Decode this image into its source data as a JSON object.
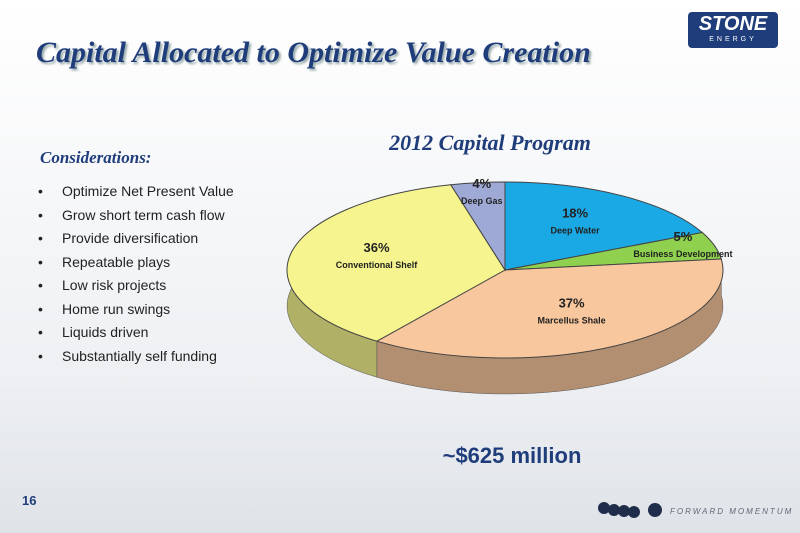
{
  "slide": {
    "title": "Capital Allocated to Optimize Value Creation",
    "considerations_heading": "Considerations:",
    "bullets": [
      "Optimize Net Present Value",
      "Grow short term cash flow",
      "Provide diversification",
      "Repeatable plays",
      "Low risk projects",
      "Home run swings",
      "Liquids driven",
      "Substantially self funding"
    ],
    "page_number": "16",
    "logo": "STONE",
    "logo_sub": "ENERGY",
    "tagline": "FORWARD MOMENTUM"
  },
  "chart_data": {
    "type": "pie",
    "title": "2012 Capital Program",
    "annotation": "~$625 million",
    "categories": [
      "Deep Water",
      "Business Development",
      "Marcellus Shale",
      "Conventional Shelf",
      "Deep Gas"
    ],
    "values": [
      18,
      5,
      37,
      36,
      4
    ],
    "value_labels": [
      "18%",
      "5%",
      "37%",
      "36%",
      "4%"
    ],
    "colors": [
      "#1ba9e6",
      "#8fd14f",
      "#f9c79d",
      "#f5f48f",
      "#9fa9d6"
    ]
  }
}
